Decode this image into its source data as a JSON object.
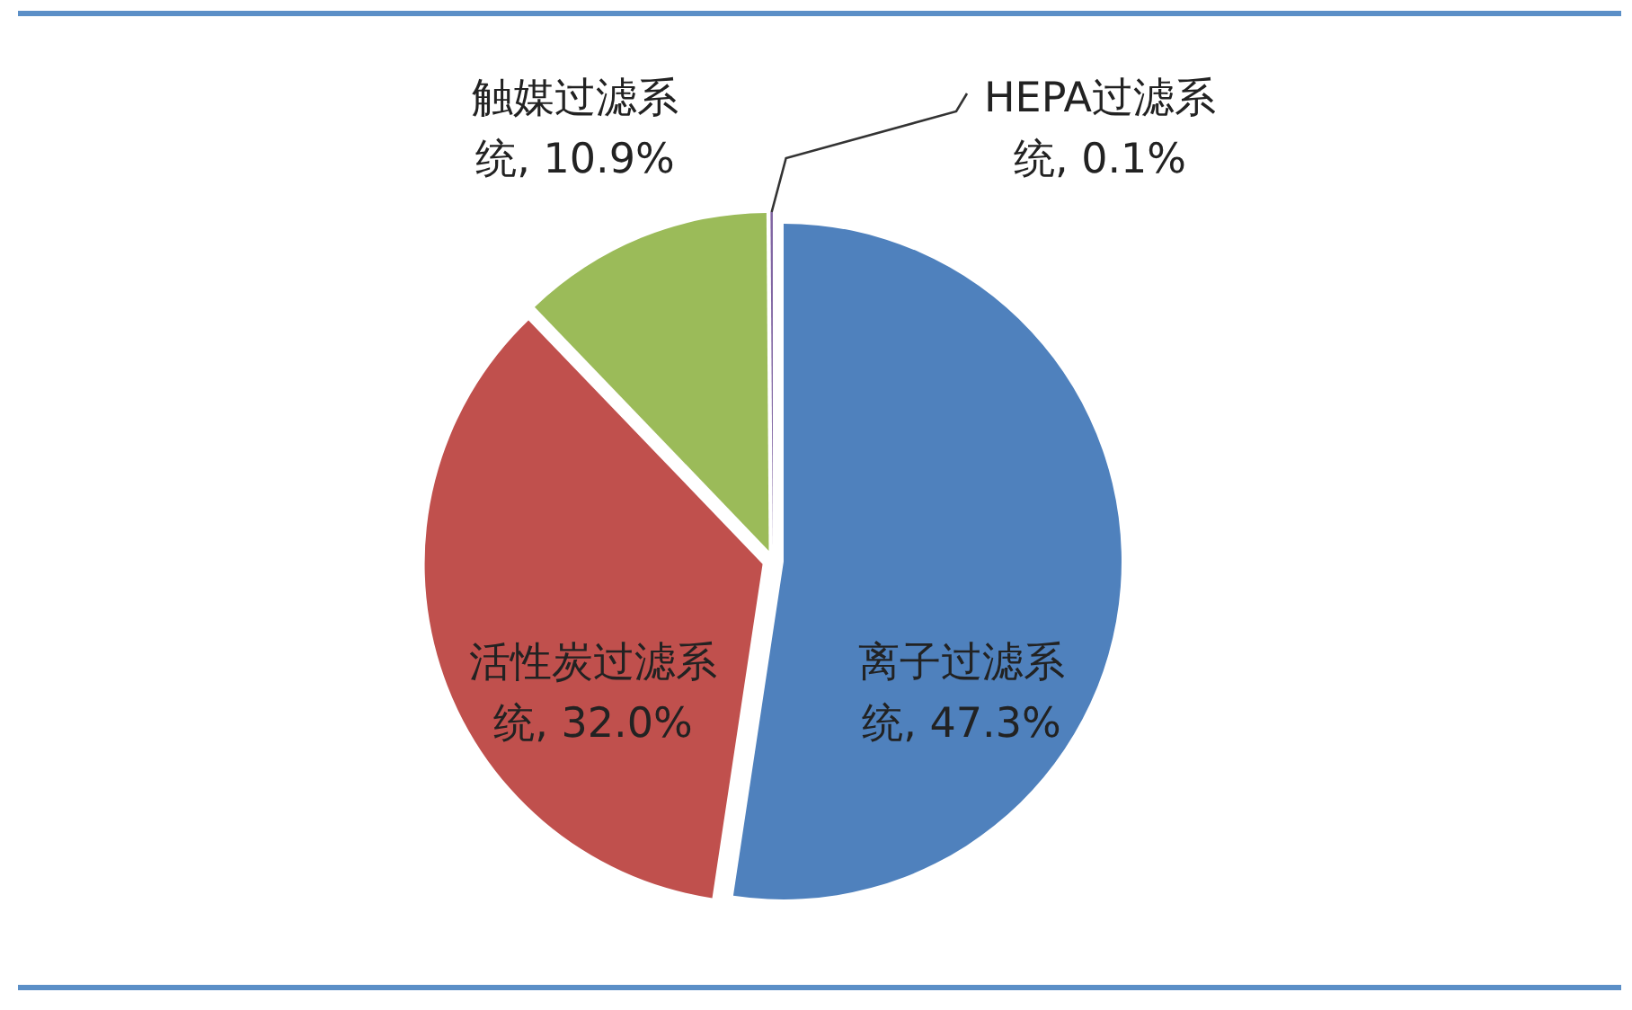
{
  "chart_data": {
    "type": "pie",
    "categories": [
      "离子过滤系统",
      "活性炭过滤系统",
      "触媒过滤系统",
      "HEPA过滤系统"
    ],
    "values": [
      47.3,
      32.0,
      10.9,
      0.1
    ],
    "value_labels": [
      "47.3%",
      "32.0%",
      "10.9%",
      "0.1%"
    ],
    "colors": [
      "#4f81bd",
      "#c0504d",
      "#9bbb59",
      "#8064a2"
    ],
    "legend": false
  }
}
